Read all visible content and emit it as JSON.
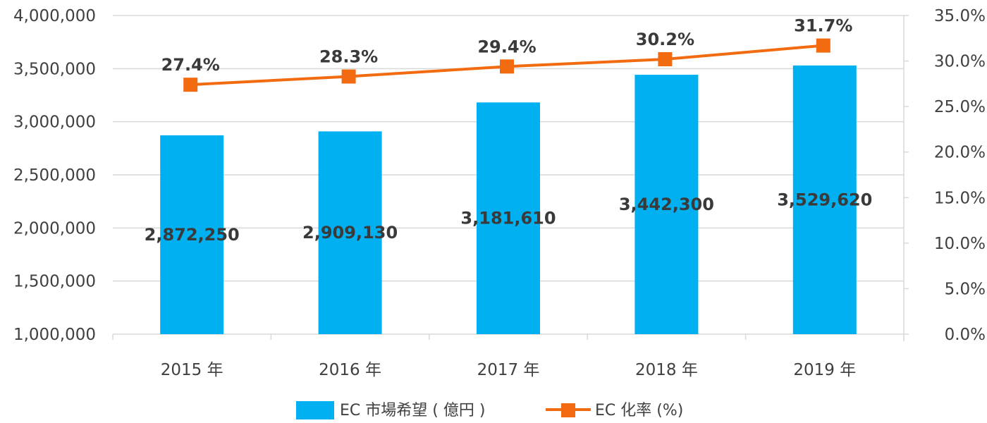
{
  "chart_data": {
    "type": "bar",
    "categories": [
      "2015 年",
      "2016 年",
      "2017 年",
      "2018 年",
      "2019 年"
    ],
    "series": [
      {
        "name": "EC 市場希望 ( 億円 )",
        "type": "bar",
        "axis": "left",
        "color": "#00B0F0",
        "values": [
          2872250,
          2909130,
          3181610,
          3442300,
          3529620
        ],
        "labels": [
          "2,872,250",
          "2,909,130",
          "3,181,610",
          "3,442,300",
          "3,529,620"
        ]
      },
      {
        "name": "EC 化率 (%)",
        "type": "line",
        "axis": "right",
        "color": "#F26B10",
        "values": [
          27.4,
          28.3,
          29.4,
          30.2,
          31.7
        ],
        "labels": [
          "27.4%",
          "28.3%",
          "29.4%",
          "30.2%",
          "31.7%"
        ]
      }
    ],
    "y_left": {
      "ylim": [
        1000000,
        4000000
      ],
      "ticks": [
        1000000,
        1500000,
        2000000,
        2500000,
        3000000,
        3500000,
        4000000
      ],
      "tick_labels": [
        "1,000,000",
        "1,500,000",
        "2,000,000",
        "2,500,000",
        "3,000,000",
        "3,500,000",
        "4,000,000"
      ]
    },
    "y_right": {
      "ylim": [
        0,
        35
      ],
      "ticks": [
        0,
        5,
        10,
        15,
        20,
        25,
        30,
        35
      ],
      "tick_labels": [
        "0.0%",
        "5.0%",
        "10.0%",
        "15.0%",
        "20.0%",
        "25.0%",
        "30.0%",
        "35.0%"
      ]
    },
    "title": "",
    "xlabel": "",
    "ylabel": "",
    "grid": true,
    "legend_position": "bottom",
    "grid_color": "#D9D9D9"
  }
}
